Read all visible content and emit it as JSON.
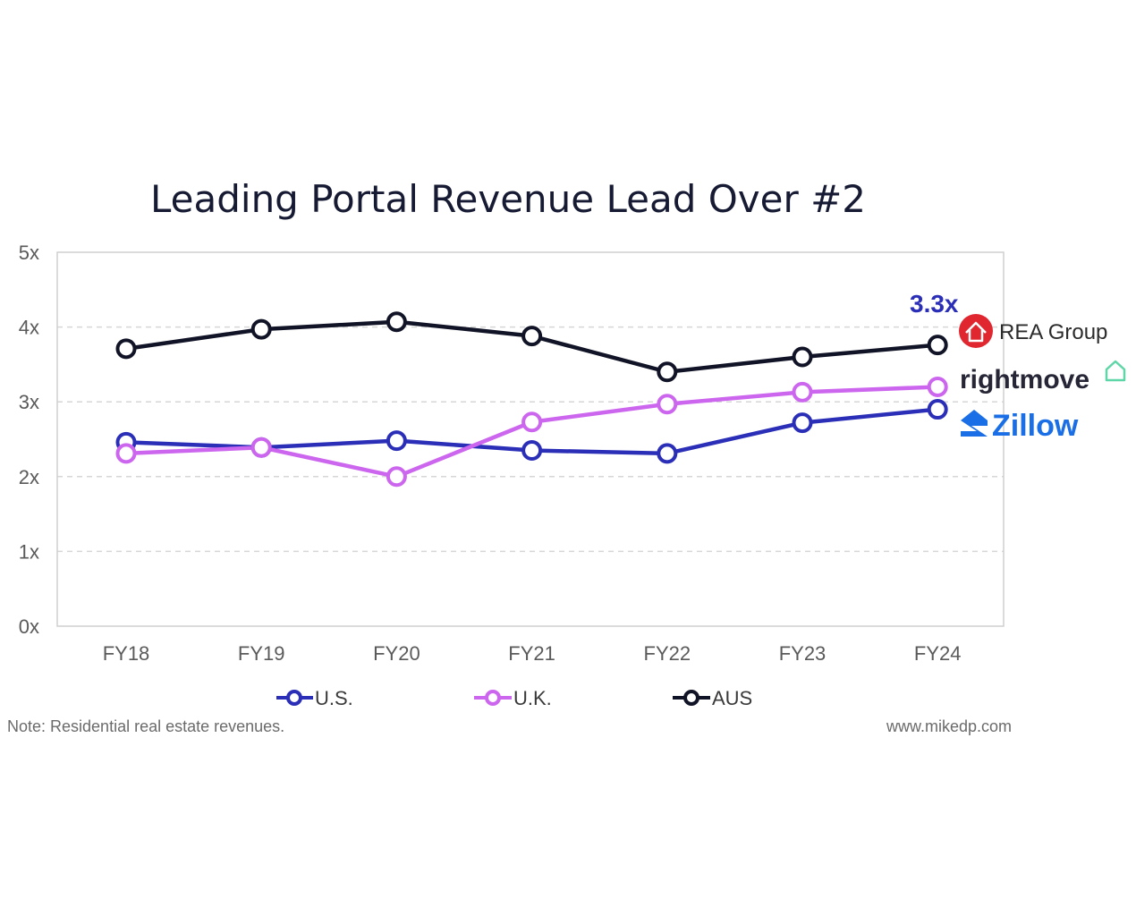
{
  "chart_data": {
    "type": "line",
    "title": "Leading Portal Revenue Lead Over #2",
    "xlabel": "",
    "ylabel": "",
    "categories": [
      "FY18",
      "FY19",
      "FY20",
      "FY21",
      "FY22",
      "FY23",
      "FY24"
    ],
    "ylim": [
      0,
      5
    ],
    "yticks": [
      "0x",
      "1x",
      "2x",
      "3x",
      "4x",
      "5x"
    ],
    "grid": true,
    "series": [
      {
        "name": "U.S.",
        "color": "#2b2fb8",
        "values": [
          2.46,
          2.39,
          2.48,
          2.35,
          2.31,
          2.72,
          2.9
        ]
      },
      {
        "name": "U.K.",
        "color": "#cc66ee",
        "values": [
          2.31,
          2.39,
          2.0,
          2.73,
          2.97,
          3.13,
          3.2
        ]
      },
      {
        "name": "AUS",
        "color": "#111326",
        "values": [
          3.71,
          3.97,
          4.07,
          3.88,
          3.4,
          3.6,
          3.76
        ]
      }
    ],
    "annotation": {
      "text": "3.3x",
      "color": "#2b2fb8"
    },
    "legend_position": "bottom"
  },
  "brands": {
    "rea": "REA Group",
    "rightmove": "rightmove",
    "zillow": "Zillow"
  },
  "footer": {
    "note": "Note: Residential real estate revenues.",
    "source": "www.mikedp.com"
  },
  "colors": {
    "rea_red": "#e0262f",
    "rightmove_green": "#5fd6a8",
    "zillow_blue": "#1a6ee6"
  }
}
